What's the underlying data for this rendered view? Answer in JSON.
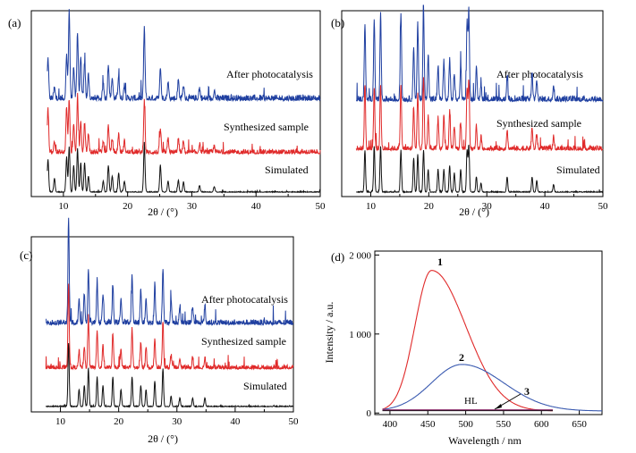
{
  "chart_data": [
    {
      "panel": "(a)",
      "type": "line",
      "xlabel": "2θ / (°)",
      "xlim": [
        5,
        50
      ],
      "xticks": [
        10,
        20,
        30,
        40,
        50
      ],
      "yaxis_visible": false,
      "series": [
        {
          "name": "After photocatalysis",
          "color": "#1f3fa0",
          "offset": 2.0,
          "peaks": [
            [
              7.6,
              0.75
            ],
            [
              8.6,
              0.2
            ],
            [
              10.5,
              0.8
            ],
            [
              10.9,
              1.65
            ],
            [
              11.6,
              0.6
            ],
            [
              12.2,
              1.25
            ],
            [
              12.7,
              0.8
            ],
            [
              13.3,
              0.7
            ],
            [
              13.9,
              0.45
            ],
            [
              16.2,
              0.3
            ],
            [
              17.0,
              0.65
            ],
            [
              17.6,
              0.4
            ],
            [
              18.6,
              0.45
            ],
            [
              19.5,
              0.25
            ],
            [
              22.6,
              1.3
            ],
            [
              25.1,
              0.6
            ],
            [
              26.3,
              0.3
            ],
            [
              27.9,
              0.35
            ],
            [
              28.7,
              0.25
            ],
            [
              31.2,
              0.2
            ],
            [
              33.5,
              0.15
            ]
          ]
        },
        {
          "name": "Synthesized sample",
          "color": "#e02a2a",
          "offset": 1.0,
          "peaks": [
            [
              7.6,
              0.8
            ],
            [
              8.6,
              0.2
            ],
            [
              10.5,
              0.85
            ],
            [
              10.9,
              1.0
            ],
            [
              11.6,
              0.55
            ],
            [
              12.2,
              1.05
            ],
            [
              12.7,
              0.6
            ],
            [
              13.3,
              0.55
            ],
            [
              13.9,
              0.35
            ],
            [
              16.2,
              0.2
            ],
            [
              17.0,
              0.5
            ],
            [
              17.6,
              0.25
            ],
            [
              18.6,
              0.35
            ],
            [
              19.5,
              0.2
            ],
            [
              22.6,
              0.95
            ],
            [
              25.1,
              0.45
            ],
            [
              26.3,
              0.25
            ],
            [
              27.9,
              0.25
            ],
            [
              28.7,
              0.2
            ],
            [
              31.2,
              0.15
            ],
            [
              33.5,
              0.12
            ]
          ]
        },
        {
          "name": "Simulated",
          "color": "#111111",
          "offset": 0.0,
          "peaks": [
            [
              7.6,
              0.6
            ],
            [
              8.6,
              0.25
            ],
            [
              10.5,
              0.65
            ],
            [
              10.9,
              0.85
            ],
            [
              11.6,
              0.5
            ],
            [
              12.2,
              0.8
            ],
            [
              12.7,
              0.55
            ],
            [
              13.3,
              0.55
            ],
            [
              13.9,
              0.3
            ],
            [
              16.2,
              0.2
            ],
            [
              17.0,
              0.5
            ],
            [
              17.6,
              0.3
            ],
            [
              18.6,
              0.35
            ],
            [
              19.5,
              0.2
            ],
            [
              22.6,
              0.9
            ],
            [
              25.1,
              0.5
            ],
            [
              26.3,
              0.2
            ],
            [
              27.9,
              0.22
            ],
            [
              28.7,
              0.18
            ],
            [
              31.2,
              0.12
            ],
            [
              33.5,
              0.1
            ]
          ]
        }
      ]
    },
    {
      "panel": "(b)",
      "type": "line",
      "xlabel": "2θ / (°)",
      "xlim": [
        5,
        50
      ],
      "xticks": [
        10,
        20,
        30,
        40,
        50
      ],
      "yaxis_visible": false,
      "series": [
        {
          "name": "After photocatalysis",
          "color": "#1f3fa0",
          "offset": 2.0,
          "peaks": [
            [
              9.0,
              1.0
            ],
            [
              10.6,
              1.05
            ],
            [
              11.7,
              1.1
            ],
            [
              15.2,
              1.15
            ],
            [
              17.4,
              0.7
            ],
            [
              18.1,
              1.0
            ],
            [
              19.1,
              1.2
            ],
            [
              19.9,
              0.6
            ],
            [
              21.6,
              0.45
            ],
            [
              22.6,
              0.5
            ],
            [
              23.6,
              0.55
            ],
            [
              24.4,
              0.35
            ],
            [
              25.5,
              0.45
            ],
            [
              26.6,
              1.0
            ],
            [
              26.9,
              1.15
            ],
            [
              28.2,
              0.4
            ],
            [
              29.0,
              0.2
            ],
            [
              33.5,
              0.3
            ],
            [
              37.8,
              0.35
            ],
            [
              38.6,
              0.25
            ],
            [
              41.5,
              0.2
            ]
          ]
        },
        {
          "name": "Synthesized sample",
          "color": "#e02a2a",
          "offset": 1.0,
          "peaks": [
            [
              9.0,
              0.85
            ],
            [
              10.6,
              0.8
            ],
            [
              11.7,
              0.85
            ],
            [
              15.2,
              0.85
            ],
            [
              17.4,
              0.55
            ],
            [
              18.1,
              0.75
            ],
            [
              19.1,
              0.95
            ],
            [
              19.9,
              0.45
            ],
            [
              21.6,
              0.4
            ],
            [
              22.6,
              0.45
            ],
            [
              23.6,
              0.5
            ],
            [
              24.4,
              0.3
            ],
            [
              25.5,
              0.35
            ],
            [
              26.6,
              0.8
            ],
            [
              26.9,
              0.9
            ],
            [
              28.2,
              0.3
            ],
            [
              29.0,
              0.15
            ],
            [
              33.5,
              0.25
            ],
            [
              37.8,
              0.28
            ],
            [
              38.6,
              0.2
            ],
            [
              41.5,
              0.15
            ]
          ]
        },
        {
          "name": "Simulated",
          "color": "#111111",
          "offset": 0.0,
          "peaks": [
            [
              9.0,
              0.55
            ],
            [
              10.6,
              0.6
            ],
            [
              11.7,
              0.6
            ],
            [
              15.2,
              0.55
            ],
            [
              17.4,
              0.45
            ],
            [
              18.1,
              0.5
            ],
            [
              19.1,
              0.55
            ],
            [
              19.9,
              0.3
            ],
            [
              21.6,
              0.3
            ],
            [
              22.6,
              0.3
            ],
            [
              23.6,
              0.35
            ],
            [
              24.4,
              0.25
            ],
            [
              25.5,
              0.3
            ],
            [
              26.6,
              0.55
            ],
            [
              26.9,
              0.6
            ],
            [
              28.2,
              0.2
            ],
            [
              29.0,
              0.12
            ],
            [
              33.5,
              0.2
            ],
            [
              37.8,
              0.2
            ],
            [
              38.6,
              0.15
            ],
            [
              41.5,
              0.1
            ]
          ]
        }
      ]
    },
    {
      "panel": "(c)",
      "type": "line",
      "xlabel": "2θ / (°)",
      "xlim": [
        5,
        50
      ],
      "xticks": [
        10,
        20,
        30,
        40,
        50
      ],
      "yaxis_visible": false,
      "series": [
        {
          "name": "After photocatalysis",
          "color": "#1f3fa0",
          "offset": 2.0,
          "peaks": [
            [
              11.4,
              1.2
            ],
            [
              13.2,
              0.3
            ],
            [
              14.1,
              0.35
            ],
            [
              14.8,
              0.65
            ],
            [
              16.3,
              0.5
            ],
            [
              17.3,
              0.35
            ],
            [
              19.0,
              0.45
            ],
            [
              20.4,
              0.3
            ],
            [
              22.3,
              0.55
            ],
            [
              23.8,
              0.4
            ],
            [
              24.7,
              0.3
            ],
            [
              26.2,
              0.45
            ],
            [
              27.6,
              0.65
            ],
            [
              29.0,
              0.25
            ],
            [
              30.5,
              0.2
            ],
            [
              32.7,
              0.2
            ],
            [
              34.8,
              0.2
            ]
          ]
        },
        {
          "name": "Synthesized sample",
          "color": "#e02a2a",
          "offset": 1.0,
          "peaks": [
            [
              11.4,
              1.0
            ],
            [
              13.2,
              0.2
            ],
            [
              14.1,
              0.25
            ],
            [
              14.8,
              0.6
            ],
            [
              16.3,
              0.45
            ],
            [
              17.3,
              0.25
            ],
            [
              19.0,
              0.4
            ],
            [
              20.4,
              0.2
            ],
            [
              22.3,
              0.45
            ],
            [
              23.8,
              0.3
            ],
            [
              24.7,
              0.25
            ],
            [
              26.2,
              0.35
            ],
            [
              27.6,
              0.55
            ],
            [
              29.0,
              0.15
            ],
            [
              30.5,
              0.12
            ],
            [
              32.7,
              0.12
            ],
            [
              34.8,
              0.12
            ]
          ]
        },
        {
          "name": "Simulated",
          "color": "#111111",
          "offset": 0.0,
          "peaks": [
            [
              11.4,
              0.75
            ],
            [
              13.2,
              0.2
            ],
            [
              14.1,
              0.25
            ],
            [
              14.8,
              0.45
            ],
            [
              16.3,
              0.35
            ],
            [
              17.3,
              0.25
            ],
            [
              19.0,
              0.35
            ],
            [
              20.4,
              0.2
            ],
            [
              22.3,
              0.35
            ],
            [
              23.8,
              0.25
            ],
            [
              24.7,
              0.2
            ],
            [
              26.2,
              0.3
            ],
            [
              27.6,
              0.45
            ],
            [
              29.0,
              0.12
            ],
            [
              30.5,
              0.1
            ],
            [
              32.7,
              0.1
            ],
            [
              34.8,
              0.1
            ]
          ]
        }
      ]
    },
    {
      "panel": "(d)",
      "type": "line",
      "xlabel": "Wavelength / nm",
      "ylabel": "Intensity / a.u.",
      "xlim": [
        380,
        680
      ],
      "ylim": [
        -20,
        2050
      ],
      "xticks": [
        400,
        450,
        500,
        550,
        600,
        650
      ],
      "yticks": [
        0,
        1000,
        2000
      ],
      "ytick_labels": [
        "0",
        "1 000",
        "2 000"
      ],
      "series": [
        {
          "name": "1",
          "color": "#e02a2a",
          "x_range": [
            390,
            615
          ],
          "peak_x": 455,
          "peak_y": 1780,
          "width_left": 22,
          "width_right": 45
        },
        {
          "name": "2",
          "color": "#3a5ab0",
          "x_range": [
            390,
            680
          ],
          "peak_x": 495,
          "peak_y": 590,
          "width_left": 40,
          "width_right": 55
        },
        {
          "name": "3",
          "color": "#111111",
          "x_range": [
            390,
            615
          ],
          "flat_y": 30
        },
        {
          "name": "HL",
          "color": "#8a2a6a",
          "x_range": [
            390,
            615
          ],
          "flat_y": 40
        }
      ],
      "annotations": [
        "1",
        "2",
        "3",
        "HL"
      ]
    }
  ],
  "panel_labels": {
    "a": "(a)",
    "b": "(b)",
    "c": "(c)",
    "d": "(d)"
  },
  "legend_labels": {
    "after": "After photocatalysis",
    "synth": "Synthesized sample",
    "sim": "Simulated"
  },
  "axis_labels": {
    "xrd_x": "2θ / (°)",
    "pl_x": "Wavelength / nm",
    "pl_y": "Intensity / a.u."
  },
  "curve_labels": {
    "c1": "1",
    "c2": "2",
    "c3": "3",
    "hl": "HL"
  }
}
